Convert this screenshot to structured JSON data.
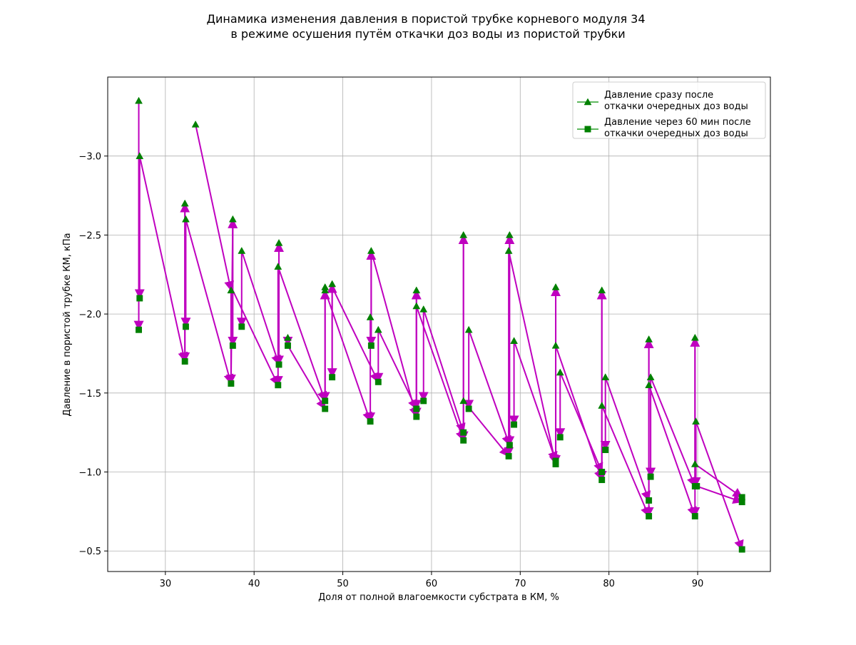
{
  "chart_data": {
    "type": "line",
    "title_lines": [
      "Динамика изменения давления в пористой трубке корневого модуля 34",
      "в режиме осушения путём откачки доз воды из пористой трубки"
    ],
    "xlabel": "Доля от полной влагоемкости субстрата в КМ, %",
    "ylabel": "Давление в пористой трубке КМ, кПа",
    "xlim": [
      23.5,
      98.2
    ],
    "ylim": [
      -0.37,
      -3.5
    ],
    "y_inverted": true,
    "grid": true,
    "legend_position": "top-right",
    "x_ticks": [
      30,
      40,
      50,
      60,
      70,
      80,
      90
    ],
    "x_tick_labels": [
      "30",
      "40",
      "50",
      "60",
      "70",
      "80",
      "90"
    ],
    "y_ticks": [
      -3.0,
      -2.5,
      -2.0,
      -1.5,
      -1.0,
      -0.5
    ],
    "y_tick_labels": [
      "−3.0",
      "−2.5",
      "−2.0",
      "−1.5",
      "−1.0",
      "−0.5"
    ],
    "colors": {
      "marker": "#008000",
      "line": "#2ca02c",
      "arrow": "#bf00bf",
      "grid": "#b0b0b0"
    },
    "series": [
      {
        "name": "Давление сразу после\nоткачки очередных доз  воды",
        "marker": "triangle-up",
        "points": [
          [
            27.0,
            -3.35
          ],
          [
            27.1,
            -3.0
          ],
          [
            32.2,
            -2.7
          ],
          [
            32.3,
            -2.6
          ],
          [
            33.4,
            -3.2
          ],
          [
            37.4,
            -2.15
          ],
          [
            37.6,
            -2.6
          ],
          [
            38.6,
            -2.4
          ],
          [
            42.7,
            -2.3
          ],
          [
            42.8,
            -2.45
          ],
          [
            43.8,
            -1.85
          ],
          [
            48.0,
            -2.17
          ],
          [
            48.0,
            -2.15
          ],
          [
            48.8,
            -2.19
          ],
          [
            53.2,
            -2.4
          ],
          [
            53.1,
            -1.98
          ],
          [
            54.0,
            -1.9
          ],
          [
            58.3,
            -2.15
          ],
          [
            58.3,
            -2.05
          ],
          [
            59.1,
            -2.03
          ],
          [
            63.6,
            -2.5
          ],
          [
            63.6,
            -1.45
          ],
          [
            64.2,
            -1.9
          ],
          [
            68.8,
            -2.5
          ],
          [
            68.7,
            -2.4
          ],
          [
            69.3,
            -1.83
          ],
          [
            74.0,
            -2.17
          ],
          [
            74.0,
            -1.8
          ],
          [
            74.5,
            -1.63
          ],
          [
            79.2,
            -2.15
          ],
          [
            79.2,
            -1.42
          ],
          [
            79.6,
            -1.6
          ],
          [
            84.5,
            -1.84
          ],
          [
            84.5,
            -1.55
          ],
          [
            84.7,
            -1.6
          ],
          [
            89.7,
            -1.85
          ],
          [
            89.7,
            -1.05
          ],
          [
            89.8,
            -1.32
          ]
        ]
      },
      {
        "name": "Давление через 60 мин после\nоткачки очередных доз воды",
        "marker": "square",
        "points": [
          [
            27.0,
            -1.9
          ],
          [
            27.1,
            -2.1
          ],
          [
            32.2,
            -1.7
          ],
          [
            32.3,
            -1.92
          ],
          [
            37.4,
            -1.56
          ],
          [
            37.6,
            -1.8
          ],
          [
            38.6,
            -1.92
          ],
          [
            42.7,
            -1.55
          ],
          [
            42.8,
            -1.68
          ],
          [
            43.8,
            -1.8
          ],
          [
            48.0,
            -1.45
          ],
          [
            48.0,
            -1.4
          ],
          [
            48.8,
            -1.6
          ],
          [
            53.1,
            -1.32
          ],
          [
            53.2,
            -1.8
          ],
          [
            54.0,
            -1.57
          ],
          [
            58.3,
            -1.35
          ],
          [
            58.3,
            -1.4
          ],
          [
            59.1,
            -1.45
          ],
          [
            63.6,
            -1.2
          ],
          [
            63.6,
            -1.25
          ],
          [
            64.2,
            -1.4
          ],
          [
            68.7,
            -1.1
          ],
          [
            68.8,
            -1.17
          ],
          [
            69.3,
            -1.3
          ],
          [
            74.0,
            -1.05
          ],
          [
            74.0,
            -1.07
          ],
          [
            74.5,
            -1.22
          ],
          [
            79.2,
            -1.0
          ],
          [
            79.2,
            -0.95
          ],
          [
            79.6,
            -1.14
          ],
          [
            84.5,
            -0.72
          ],
          [
            84.5,
            -0.82
          ],
          [
            84.7,
            -0.97
          ],
          [
            89.7,
            -0.72
          ],
          [
            89.7,
            -0.91
          ],
          [
            89.9,
            -0.91
          ],
          [
            95.0,
            -0.84
          ],
          [
            95.0,
            -0.81
          ],
          [
            95.0,
            -0.51
          ]
        ]
      }
    ],
    "arrows": [
      [
        27.0,
        -3.35,
        27.0,
        -1.9
      ],
      [
        27.1,
        -3.0,
        27.1,
        -2.1
      ],
      [
        27.1,
        -3.0,
        32.2,
        -1.7
      ],
      [
        32.2,
        -2.7,
        32.2,
        -1.7
      ],
      [
        32.3,
        -2.6,
        32.3,
        -1.92
      ],
      [
        32.2,
        -1.7,
        32.2,
        -2.7
      ],
      [
        32.3,
        -2.6,
        37.4,
        -1.56
      ],
      [
        33.4,
        -3.2,
        37.4,
        -2.15
      ],
      [
        37.4,
        -2.15,
        37.4,
        -1.56
      ],
      [
        37.6,
        -2.6,
        37.6,
        -1.8
      ],
      [
        37.4,
        -1.56,
        37.6,
        -2.6
      ],
      [
        37.6,
        -2.15,
        42.7,
        -1.55
      ],
      [
        38.6,
        -2.4,
        38.6,
        -1.92
      ],
      [
        38.6,
        -2.4,
        42.8,
        -1.68
      ],
      [
        42.7,
        -2.3,
        42.7,
        -1.55
      ],
      [
        42.8,
        -2.45,
        42.8,
        -1.68
      ],
      [
        42.8,
        -1.68,
        42.8,
        -2.45
      ],
      [
        42.7,
        -2.3,
        48.0,
        -1.45
      ],
      [
        43.8,
        -1.85,
        43.8,
        -1.8
      ],
      [
        43.8,
        -1.8,
        48.0,
        -1.4
      ],
      [
        48.0,
        -2.17,
        48.0,
        -1.45
      ],
      [
        48.0,
        -1.45,
        48.0,
        -2.15
      ],
      [
        48.8,
        -2.19,
        48.8,
        -1.6
      ],
      [
        48.0,
        -2.15,
        53.1,
        -1.32
      ],
      [
        48.8,
        -1.6,
        48.8,
        -2.19
      ],
      [
        48.8,
        -2.17,
        54.0,
        -1.57
      ],
      [
        53.2,
        -2.4,
        53.2,
        -1.8
      ],
      [
        53.1,
        -1.98,
        53.1,
        -1.32
      ],
      [
        53.2,
        -1.8,
        53.2,
        -2.4
      ],
      [
        53.2,
        -2.4,
        58.3,
        -1.35
      ],
      [
        54.0,
        -1.9,
        54.0,
        -1.57
      ],
      [
        54.0,
        -1.9,
        58.3,
        -1.4
      ],
      [
        58.3,
        -2.15,
        58.3,
        -1.35
      ],
      [
        58.3,
        -2.05,
        58.3,
        -1.4
      ],
      [
        58.3,
        -1.4,
        58.3,
        -2.15
      ],
      [
        59.1,
        -2.03,
        59.1,
        -1.45
      ],
      [
        58.3,
        -2.05,
        63.6,
        -1.2
      ],
      [
        59.1,
        -2.03,
        63.6,
        -1.25
      ],
      [
        63.6,
        -2.5,
        63.6,
        -1.2
      ],
      [
        63.6,
        -1.25,
        63.6,
        -2.5
      ],
      [
        64.2,
        -1.9,
        64.2,
        -1.4
      ],
      [
        63.6,
        -1.45,
        68.7,
        -1.1
      ],
      [
        64.2,
        -1.9,
        68.8,
        -1.17
      ],
      [
        68.7,
        -2.4,
        68.7,
        -1.1
      ],
      [
        68.8,
        -2.5,
        68.8,
        -1.17
      ],
      [
        68.7,
        -1.1,
        68.8,
        -2.5
      ],
      [
        69.3,
        -1.83,
        69.3,
        -1.3
      ],
      [
        68.7,
        -2.4,
        74.0,
        -1.05
      ],
      [
        69.3,
        -1.83,
        74.0,
        -1.07
      ],
      [
        74.0,
        -2.17,
        74.0,
        -1.05
      ],
      [
        74.0,
        -1.07,
        74.0,
        -2.17
      ],
      [
        74.5,
        -1.63,
        74.5,
        -1.22
      ],
      [
        74.0,
        -1.8,
        79.2,
        -0.95
      ],
      [
        74.5,
        -1.63,
        79.2,
        -1.0
      ],
      [
        79.2,
        -2.15,
        79.2,
        -0.95
      ],
      [
        79.2,
        -1.0,
        79.2,
        -2.15
      ],
      [
        79.6,
        -1.6,
        79.6,
        -1.14
      ],
      [
        79.2,
        -1.42,
        84.5,
        -0.72
      ],
      [
        79.6,
        -1.6,
        84.5,
        -0.82
      ],
      [
        84.5,
        -1.84,
        84.5,
        -0.72
      ],
      [
        84.5,
        -0.82,
        84.5,
        -1.84
      ],
      [
        84.7,
        -1.6,
        84.7,
        -0.97
      ],
      [
        84.5,
        -1.55,
        89.7,
        -0.72
      ],
      [
        84.7,
        -1.6,
        89.7,
        -0.91
      ],
      [
        89.7,
        -1.85,
        89.7,
        -0.72
      ],
      [
        89.7,
        -0.91,
        89.7,
        -1.85
      ],
      [
        89.8,
        -1.32,
        89.8,
        -0.91
      ],
      [
        89.7,
        -1.05,
        95.0,
        -0.84
      ],
      [
        89.8,
        -1.32,
        95.0,
        -0.51
      ],
      [
        89.9,
        -0.91,
        95.0,
        -0.81
      ]
    ]
  }
}
